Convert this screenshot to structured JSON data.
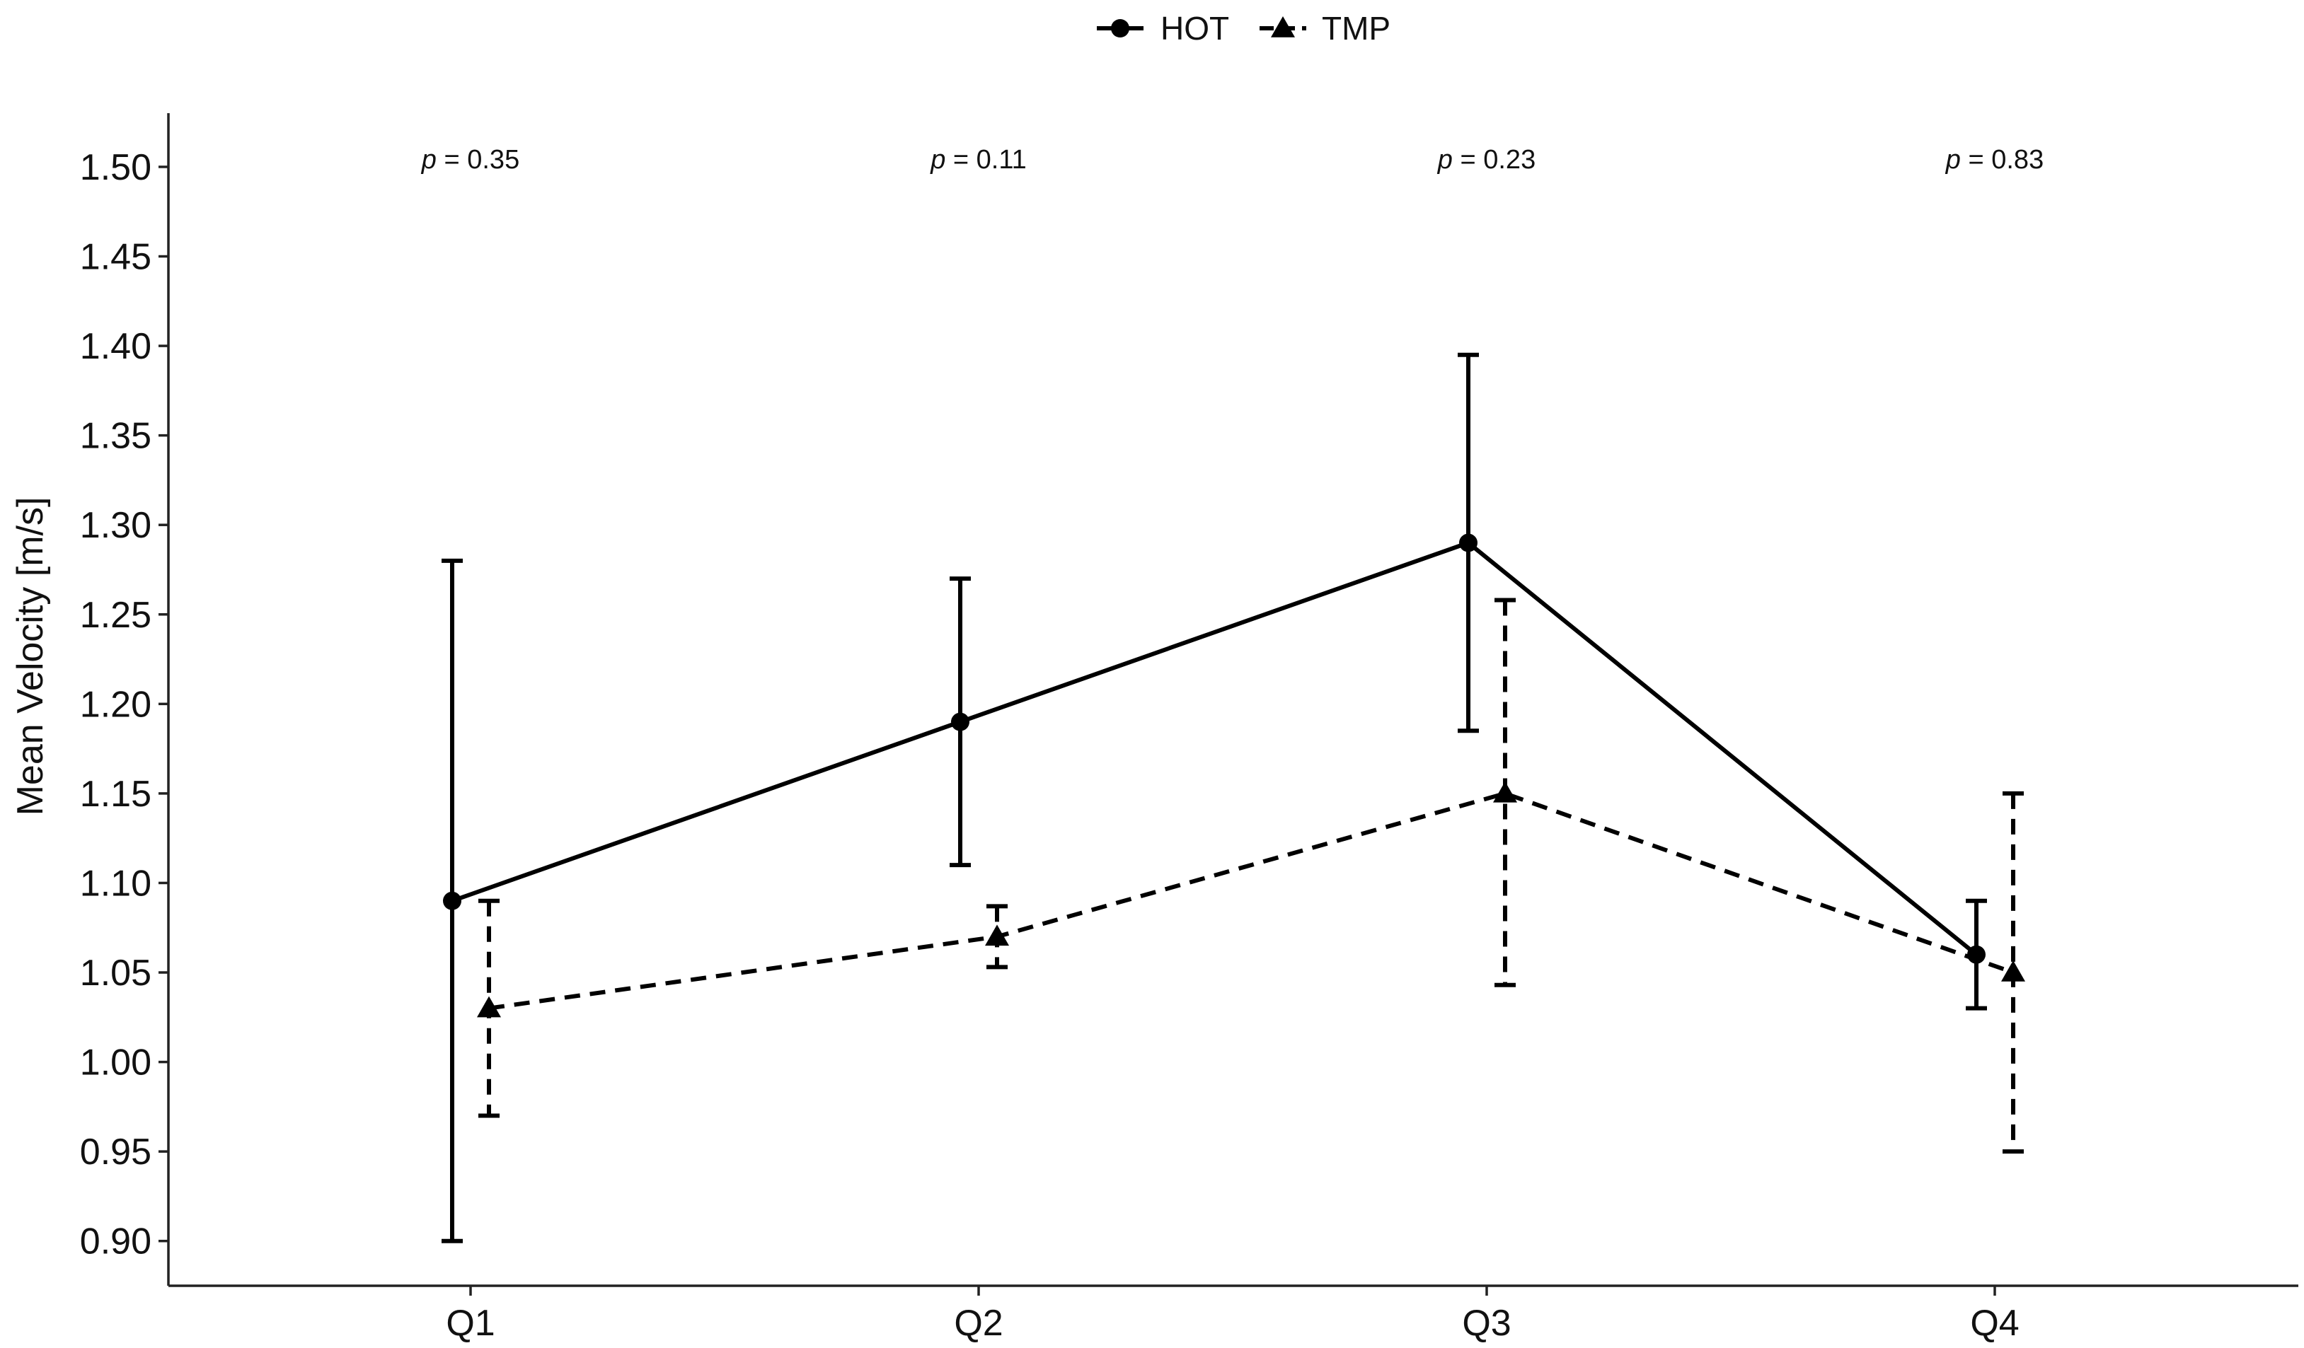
{
  "chart_data": {
    "type": "line",
    "title": "",
    "xlabel": "",
    "ylabel": "Mean Velocity [m/s]",
    "categories": [
      "Q1",
      "Q2",
      "Q3",
      "Q4"
    ],
    "ylim": [
      0.875,
      1.53
    ],
    "yticks": [
      0.9,
      0.95,
      1.0,
      1.05,
      1.1,
      1.15,
      1.2,
      1.25,
      1.3,
      1.35,
      1.4,
      1.45,
      1.5
    ],
    "ytick_labels": [
      "0.90",
      "0.95",
      "1.00",
      "1.05",
      "1.10",
      "1.15",
      "1.20",
      "1.25",
      "1.30",
      "1.35",
      "1.40",
      "1.45",
      "1.50"
    ],
    "legend_position": "top-center",
    "grid": false,
    "series": [
      {
        "name": "HOT",
        "marker": "circle",
        "line_style": "solid",
        "values": [
          1.09,
          1.19,
          1.29,
          1.06
        ],
        "err_low": [
          0.9,
          1.11,
          1.185,
          1.03
        ],
        "err_high": [
          1.28,
          1.27,
          1.395,
          1.09
        ]
      },
      {
        "name": "TMP",
        "marker": "triangle",
        "line_style": "dashed",
        "values": [
          1.03,
          1.07,
          1.15,
          1.05
        ],
        "err_low": [
          0.97,
          1.053,
          1.043,
          0.95
        ],
        "err_high": [
          1.09,
          1.087,
          1.258,
          1.15
        ]
      }
    ],
    "annotations": [
      {
        "category": "Q1",
        "prefix": "p",
        "text": " = 0.35"
      },
      {
        "category": "Q2",
        "prefix": "p",
        "text": " = 0.11"
      },
      {
        "category": "Q3",
        "prefix": "p",
        "text": " = 0.23"
      },
      {
        "category": "Q4",
        "prefix": "p",
        "text": " = 0.83"
      }
    ],
    "colors": {
      "line": "#000000",
      "axis": "#222222"
    }
  }
}
